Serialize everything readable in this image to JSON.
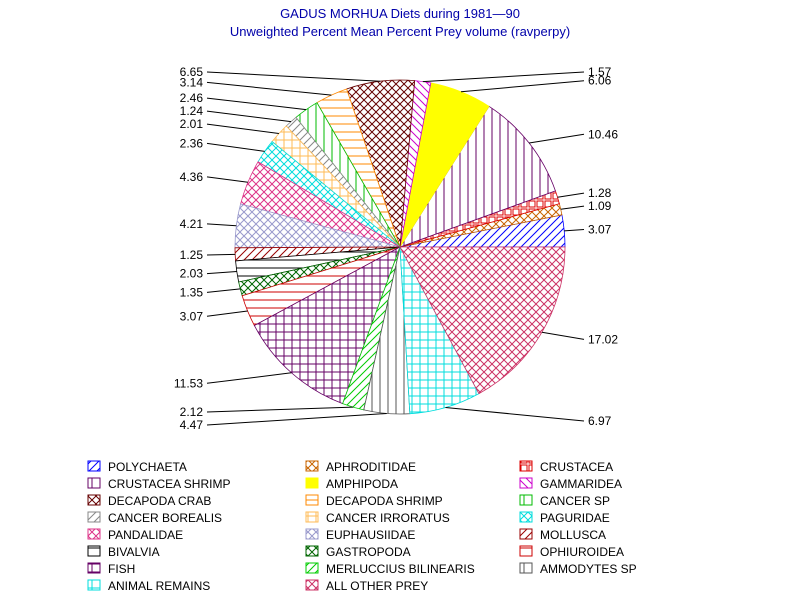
{
  "chart_data": {
    "type": "pie",
    "title": "GADUS MORHUA Diets during 1981—90",
    "subtitle": "Unweighted Percent Mean Percent Prey  volume (ravperpy)",
    "slices": [
      {
        "name": "POLYCHAETA",
        "value": 3.07,
        "label": "3.07",
        "color": "#0000ff",
        "pattern": "diag-fwd"
      },
      {
        "name": "APHRODITIDAE",
        "value": 1.09,
        "label": "1.09",
        "color": "#c86400",
        "pattern": "cross-diag"
      },
      {
        "name": "CRUSTACEA",
        "value": 1.28,
        "label": "1.28",
        "color": "#dd0000",
        "pattern": "open-square"
      },
      {
        "name": "CRUSTACEA SHRIMP",
        "value": 10.46,
        "label": "10.46",
        "color": "#660066",
        "pattern": "vertical"
      },
      {
        "name": "AMPHIPODA",
        "value": 6.06,
        "label": "6.06",
        "color": "#ffff00",
        "pattern": "solid"
      },
      {
        "name": "GAMMARIDEA",
        "value": 1.57,
        "label": "1.57",
        "color": "#cc00cc",
        "pattern": "diag-back"
      },
      {
        "name": "DECAPODA CRAB",
        "value": 6.65,
        "label": "6.65",
        "color": "#660000",
        "pattern": "cross-diag"
      },
      {
        "name": "DECAPODA SHRIMP",
        "value": 3.14,
        "label": "3.14",
        "color": "#ff8800",
        "pattern": "horizontal"
      },
      {
        "name": "CANCER SP",
        "value": 2.46,
        "label": "2.46",
        "color": "#00bb00",
        "pattern": "vertical"
      },
      {
        "name": "CANCER BOREALIS",
        "value": 1.24,
        "label": "1.24",
        "color": "#888888",
        "pattern": "diag-fwd"
      },
      {
        "name": "CANCER IRRORATUS",
        "value": 2.01,
        "label": "2.01",
        "color": "#ffbb55",
        "pattern": "grid"
      },
      {
        "name": "PAGURIDAE",
        "value": 2.36,
        "label": "2.36",
        "color": "#00dddd",
        "pattern": "cross-diag"
      },
      {
        "name": "PANDALIDAE",
        "value": 4.36,
        "label": "4.36",
        "color": "#dd3388",
        "pattern": "cross-diag"
      },
      {
        "name": "EUPHAUSIIDAE",
        "value": 4.21,
        "label": "4.21",
        "color": "#9999cc",
        "pattern": "cross-diag"
      },
      {
        "name": "MOLLUSCA",
        "value": 1.25,
        "label": "1.25",
        "color": "#990000",
        "pattern": "diag-fwd"
      },
      {
        "name": "BIVALVIA",
        "value": 2.03,
        "label": "2.03",
        "color": "#000000",
        "pattern": "horizontal"
      },
      {
        "name": "GASTROPODA",
        "value": 1.35,
        "label": "1.35",
        "color": "#006600",
        "pattern": "cross-diag"
      },
      {
        "name": "OPHIUROIDEA",
        "value": 3.07,
        "label": "3.07",
        "color": "#cc0000",
        "pattern": "horizontal"
      },
      {
        "name": "FISH",
        "value": 11.53,
        "label": "11.53",
        "color": "#660066",
        "pattern": "grid"
      },
      {
        "name": "MERLUCCIUS BILINEARIS",
        "value": 2.12,
        "label": "2.12",
        "color": "#00cc00",
        "pattern": "diag-fwd"
      },
      {
        "name": "AMMODYTES SP",
        "value": 4.47,
        "label": "4.47",
        "color": "#555555",
        "pattern": "vertical"
      },
      {
        "name": "ANIMAL REMAINS",
        "value": 6.97,
        "label": "6.97",
        "color": "#00dddd",
        "pattern": "grid"
      },
      {
        "name": "ALL OTHER PREY",
        "value": 17.02,
        "label": "17.02",
        "color": "#cc3366",
        "pattern": "cross-diag"
      }
    ],
    "legend_placement": "bottom",
    "grid": false
  }
}
